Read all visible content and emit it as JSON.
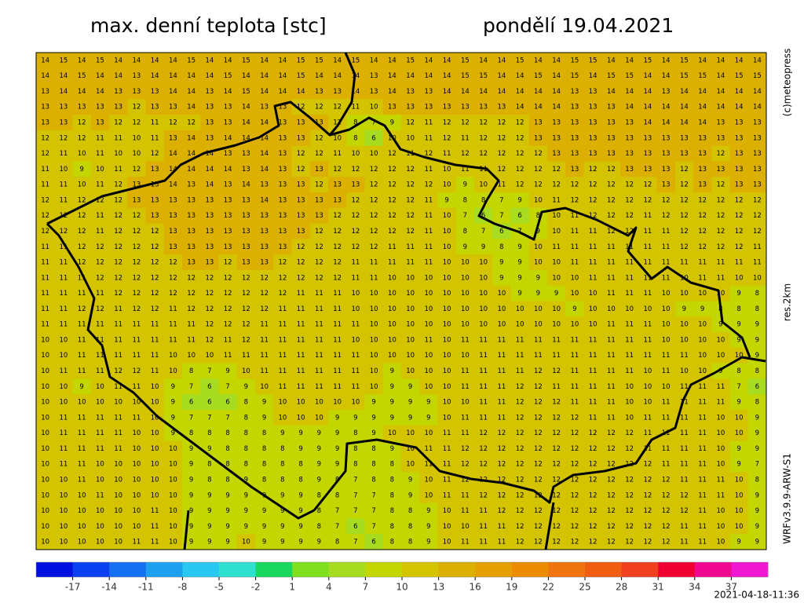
{
  "header": {
    "title": "max. denní teplota [stc]",
    "date": "pondělí 19.04.2021"
  },
  "side_labels": [
    "(c)meteopress",
    "res.2km",
    "WRFv3.9.9-ARW-S1"
  ],
  "grid": {
    "rows": [
      [
        14,
        15,
        14,
        15,
        14,
        14,
        14,
        14,
        15,
        14,
        14,
        15,
        14,
        14,
        15,
        15,
        14,
        15,
        14,
        14,
        15,
        14,
        14,
        15,
        14,
        14,
        15,
        14,
        14,
        15,
        15,
        14,
        14,
        15,
        14,
        15,
        14,
        14,
        14,
        14
      ],
      [
        14,
        14,
        15,
        14,
        14,
        13,
        14,
        14,
        14,
        14,
        15,
        14,
        14,
        14,
        15,
        14,
        14,
        14,
        13,
        14,
        14,
        14,
        14,
        15,
        15,
        14,
        14,
        15,
        14,
        15,
        14,
        15,
        15,
        14,
        14,
        15,
        15,
        14,
        15,
        15
      ],
      [
        13,
        14,
        14,
        14,
        13,
        13,
        13,
        14,
        14,
        13,
        14,
        15,
        14,
        14,
        14,
        13,
        13,
        14,
        13,
        14,
        13,
        13,
        14,
        14,
        14,
        14,
        14,
        14,
        14,
        13,
        13,
        14,
        14,
        14,
        13,
        14,
        14,
        14,
        14,
        14
      ],
      [
        13,
        13,
        13,
        13,
        13,
        12,
        13,
        13,
        14,
        13,
        13,
        14,
        13,
        13,
        12,
        12,
        12,
        11,
        10,
        13,
        13,
        13,
        13,
        13,
        13,
        13,
        14,
        14,
        14,
        13,
        13,
        13,
        14,
        14,
        14,
        14,
        14,
        14,
        14,
        14
      ],
      [
        13,
        13,
        12,
        13,
        12,
        12,
        11,
        12,
        12,
        13,
        13,
        14,
        14,
        13,
        13,
        13,
        12,
        8,
        7,
        9,
        12,
        11,
        12,
        12,
        12,
        12,
        12,
        13,
        13,
        13,
        13,
        13,
        13,
        14,
        14,
        14,
        14,
        13,
        13,
        13
      ],
      [
        12,
        12,
        12,
        11,
        11,
        10,
        11,
        13,
        14,
        13,
        14,
        14,
        14,
        13,
        13,
        12,
        10,
        8,
        6,
        10,
        10,
        11,
        12,
        11,
        12,
        12,
        12,
        13,
        13,
        13,
        13,
        13,
        13,
        13,
        13,
        13,
        13,
        13,
        13,
        13
      ],
      [
        12,
        11,
        10,
        11,
        10,
        10,
        12,
        14,
        14,
        14,
        13,
        13,
        14,
        13,
        12,
        12,
        11,
        10,
        10,
        12,
        11,
        12,
        11,
        12,
        12,
        12,
        12,
        12,
        13,
        13,
        13,
        13,
        13,
        13,
        13,
        13,
        13,
        12,
        13,
        13
      ],
      [
        11,
        10,
        9,
        10,
        11,
        12,
        13,
        14,
        14,
        14,
        14,
        13,
        14,
        13,
        12,
        13,
        12,
        12,
        12,
        12,
        12,
        11,
        10,
        11,
        11,
        12,
        12,
        12,
        12,
        13,
        12,
        12,
        13,
        13,
        13,
        12,
        13,
        13,
        13,
        13
      ],
      [
        11,
        11,
        10,
        11,
        12,
        13,
        13,
        14,
        13,
        14,
        13,
        14,
        13,
        13,
        13,
        12,
        13,
        13,
        12,
        12,
        12,
        12,
        10,
        9,
        10,
        11,
        12,
        12,
        12,
        12,
        12,
        12,
        12,
        12,
        13,
        12,
        13,
        12,
        13,
        13
      ],
      [
        12,
        11,
        12,
        12,
        12,
        13,
        13,
        13,
        13,
        13,
        13,
        13,
        14,
        13,
        13,
        13,
        13,
        12,
        12,
        12,
        12,
        11,
        9,
        8,
        8,
        7,
        9,
        10,
        11,
        12,
        12,
        12,
        12,
        12,
        12,
        12,
        12,
        12,
        12,
        12
      ],
      [
        12,
        12,
        12,
        11,
        12,
        12,
        13,
        13,
        13,
        13,
        13,
        13,
        13,
        13,
        13,
        13,
        12,
        12,
        12,
        12,
        12,
        11,
        10,
        7,
        6,
        7,
        6,
        8,
        10,
        11,
        12,
        12,
        12,
        11,
        12,
        12,
        12,
        12,
        12,
        12
      ],
      [
        12,
        12,
        12,
        11,
        12,
        12,
        12,
        13,
        13,
        13,
        13,
        13,
        13,
        13,
        13,
        12,
        12,
        12,
        12,
        12,
        12,
        11,
        10,
        8,
        7,
        6,
        7,
        9,
        10,
        11,
        11,
        12,
        12,
        11,
        11,
        12,
        12,
        12,
        12,
        12
      ],
      [
        11,
        11,
        12,
        12,
        12,
        12,
        12,
        13,
        13,
        13,
        13,
        13,
        13,
        13,
        12,
        12,
        12,
        12,
        12,
        11,
        11,
        11,
        10,
        9,
        9,
        8,
        9,
        10,
        11,
        11,
        11,
        11,
        11,
        11,
        11,
        12,
        12,
        12,
        12,
        11
      ],
      [
        11,
        11,
        12,
        12,
        12,
        12,
        12,
        12,
        13,
        13,
        12,
        13,
        13,
        12,
        12,
        12,
        12,
        11,
        11,
        11,
        11,
        11,
        10,
        10,
        10,
        9,
        9,
        10,
        10,
        11,
        11,
        11,
        11,
        11,
        11,
        11,
        11,
        11,
        11,
        11
      ],
      [
        11,
        11,
        11,
        12,
        12,
        12,
        12,
        12,
        12,
        12,
        12,
        12,
        12,
        12,
        12,
        12,
        12,
        11,
        11,
        10,
        10,
        10,
        10,
        10,
        10,
        9,
        9,
        9,
        10,
        10,
        11,
        11,
        11,
        11,
        11,
        10,
        11,
        11,
        10,
        10
      ],
      [
        11,
        11,
        11,
        11,
        12,
        12,
        12,
        12,
        12,
        12,
        12,
        12,
        12,
        12,
        11,
        11,
        11,
        10,
        10,
        10,
        10,
        10,
        10,
        10,
        10,
        10,
        9,
        9,
        9,
        10,
        10,
        11,
        11,
        11,
        10,
        10,
        10,
        10,
        9,
        8
      ],
      [
        11,
        11,
        12,
        12,
        11,
        12,
        12,
        11,
        12,
        12,
        12,
        12,
        12,
        11,
        11,
        11,
        11,
        10,
        10,
        10,
        10,
        10,
        10,
        10,
        10,
        10,
        10,
        10,
        10,
        9,
        10,
        10,
        10,
        10,
        10,
        9,
        9,
        8,
        8,
        8
      ],
      [
        11,
        11,
        11,
        11,
        11,
        11,
        11,
        11,
        11,
        12,
        12,
        12,
        11,
        11,
        11,
        11,
        11,
        11,
        10,
        10,
        10,
        10,
        10,
        10,
        10,
        10,
        10,
        10,
        10,
        10,
        10,
        11,
        11,
        11,
        10,
        10,
        10,
        9,
        9,
        9
      ],
      [
        10,
        10,
        11,
        11,
        11,
        11,
        11,
        11,
        11,
        12,
        11,
        12,
        11,
        11,
        11,
        11,
        11,
        10,
        10,
        10,
        10,
        11,
        10,
        11,
        11,
        11,
        11,
        11,
        11,
        11,
        11,
        11,
        11,
        11,
        10,
        10,
        10,
        10,
        9,
        9
      ],
      [
        10,
        10,
        11,
        11,
        11,
        11,
        11,
        10,
        10,
        10,
        11,
        11,
        11,
        11,
        11,
        11,
        11,
        11,
        10,
        10,
        10,
        10,
        10,
        10,
        11,
        11,
        11,
        11,
        11,
        11,
        11,
        11,
        11,
        11,
        11,
        11,
        10,
        10,
        10,
        9
      ],
      [
        10,
        11,
        11,
        11,
        12,
        12,
        11,
        10,
        8,
        7,
        9,
        10,
        11,
        11,
        11,
        11,
        11,
        11,
        10,
        9,
        10,
        10,
        10,
        11,
        11,
        11,
        11,
        12,
        12,
        11,
        11,
        11,
        11,
        10,
        11,
        10,
        10,
        9,
        8,
        8
      ],
      [
        10,
        10,
        9,
        10,
        11,
        11,
        10,
        9,
        7,
        6,
        7,
        9,
        10,
        11,
        11,
        11,
        11,
        11,
        10,
        9,
        9,
        10,
        10,
        11,
        11,
        11,
        12,
        12,
        11,
        11,
        11,
        11,
        10,
        10,
        10,
        11,
        11,
        11,
        7,
        6
      ],
      [
        10,
        10,
        10,
        10,
        10,
        10,
        10,
        9,
        6,
        6,
        6,
        8,
        9,
        10,
        10,
        10,
        10,
        10,
        9,
        9,
        9,
        9,
        10,
        10,
        11,
        11,
        12,
        12,
        12,
        11,
        11,
        11,
        10,
        10,
        11,
        11,
        11,
        11,
        9,
        8
      ],
      [
        10,
        11,
        11,
        11,
        11,
        11,
        10,
        9,
        7,
        7,
        7,
        8,
        9,
        10,
        10,
        10,
        9,
        9,
        9,
        9,
        9,
        9,
        10,
        11,
        11,
        11,
        12,
        12,
        12,
        12,
        11,
        11,
        10,
        11,
        11,
        11,
        11,
        10,
        10,
        9
      ],
      [
        10,
        11,
        11,
        11,
        11,
        10,
        10,
        9,
        8,
        8,
        8,
        8,
        8,
        9,
        9,
        9,
        9,
        8,
        9,
        10,
        10,
        10,
        11,
        11,
        12,
        12,
        12,
        12,
        12,
        12,
        12,
        12,
        12,
        11,
        11,
        11,
        11,
        10,
        10,
        9
      ],
      [
        10,
        11,
        11,
        11,
        11,
        10,
        10,
        10,
        9,
        9,
        8,
        8,
        8,
        8,
        9,
        9,
        9,
        8,
        8,
        9,
        10,
        11,
        11,
        12,
        12,
        12,
        12,
        12,
        12,
        12,
        12,
        12,
        12,
        11,
        11,
        11,
        11,
        10,
        9,
        9
      ],
      [
        10,
        11,
        11,
        10,
        10,
        10,
        10,
        10,
        9,
        8,
        8,
        8,
        8,
        8,
        8,
        9,
        9,
        8,
        8,
        8,
        10,
        11,
        11,
        12,
        12,
        12,
        12,
        12,
        12,
        12,
        12,
        12,
        12,
        12,
        11,
        11,
        11,
        10,
        9,
        7
      ],
      [
        10,
        10,
        11,
        10,
        10,
        10,
        10,
        10,
        9,
        8,
        8,
        9,
        8,
        8,
        8,
        9,
        8,
        7,
        8,
        8,
        9,
        10,
        11,
        12,
        12,
        12,
        12,
        12,
        12,
        12,
        12,
        12,
        12,
        12,
        12,
        11,
        11,
        11,
        10,
        8
      ],
      [
        10,
        10,
        10,
        11,
        10,
        10,
        10,
        10,
        9,
        9,
        9,
        9,
        9,
        9,
        9,
        8,
        8,
        7,
        7,
        8,
        9,
        10,
        11,
        11,
        12,
        12,
        12,
        12,
        12,
        12,
        12,
        12,
        12,
        12,
        12,
        12,
        11,
        11,
        10,
        9
      ],
      [
        10,
        10,
        10,
        10,
        10,
        10,
        11,
        10,
        9,
        9,
        9,
        9,
        9,
        9,
        9,
        8,
        7,
        7,
        7,
        8,
        8,
        9,
        10,
        11,
        11,
        12,
        12,
        12,
        12,
        12,
        12,
        12,
        12,
        12,
        12,
        12,
        11,
        10,
        10,
        9
      ],
      [
        10,
        10,
        10,
        10,
        10,
        10,
        11,
        10,
        9,
        9,
        9,
        9,
        9,
        9,
        9,
        8,
        7,
        6,
        7,
        8,
        8,
        9,
        10,
        10,
        11,
        11,
        12,
        12,
        12,
        12,
        12,
        12,
        12,
        12,
        12,
        11,
        11,
        10,
        10,
        9
      ],
      [
        10,
        10,
        10,
        10,
        10,
        11,
        11,
        10,
        9,
        9,
        9,
        10,
        9,
        9,
        9,
        9,
        8,
        7,
        6,
        8,
        8,
        9,
        10,
        11,
        11,
        11,
        12,
        12,
        12,
        12,
        12,
        12,
        12,
        12,
        12,
        11,
        11,
        10,
        9,
        9
      ]
    ]
  },
  "colorbar": {
    "bins": [
      -20,
      -17,
      -14,
      -11,
      -8,
      -5,
      -2,
      1,
      4,
      7,
      10,
      13,
      16,
      19,
      22,
      25,
      28,
      31,
      34,
      37,
      40
    ],
    "colors": [
      "#0010e0",
      "#0a40f0",
      "#1470f0",
      "#1ea0f0",
      "#28c8f0",
      "#30e0d0",
      "#18d860",
      "#80e020",
      "#a8dc20",
      "#c4d600",
      "#d4c400",
      "#dcb000",
      "#e4a000",
      "#ec8c00",
      "#f07410",
      "#f05c10",
      "#f04020",
      "#f00030",
      "#f00890",
      "#f018d0"
    ],
    "ticks": [
      -17,
      -14,
      -11,
      -8,
      -5,
      -2,
      1,
      4,
      7,
      10,
      13,
      16,
      19,
      22,
      25,
      28,
      31,
      34,
      37
    ]
  },
  "timestamp": "2021-04-18-11:36"
}
